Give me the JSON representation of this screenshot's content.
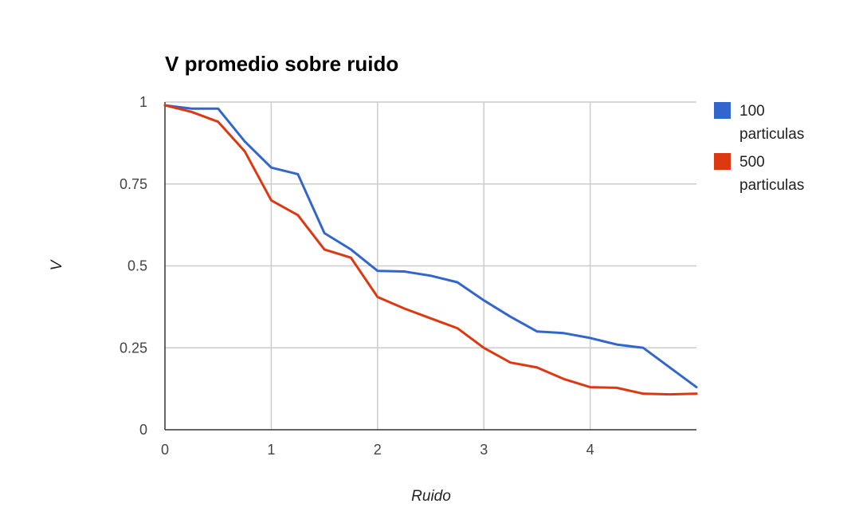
{
  "chart_data": {
    "type": "line",
    "title": "V promedio sobre ruido",
    "xlabel": "Ruido",
    "ylabel": "V",
    "xlim": [
      0,
      5
    ],
    "ylim": [
      0,
      1
    ],
    "x_ticks": [
      0,
      1,
      2,
      3,
      4
    ],
    "y_ticks": [
      0,
      0.25,
      0.5,
      0.75,
      1
    ],
    "x_tick_labels": [
      "0",
      "1",
      "2",
      "3",
      "4"
    ],
    "y_tick_labels": [
      "0",
      "0.25",
      "0.5",
      "0.75",
      "1"
    ],
    "grid": true,
    "legend_position": "right",
    "x": [
      0,
      0.25,
      0.5,
      0.75,
      1,
      1.25,
      1.5,
      1.75,
      2,
      2.25,
      2.5,
      2.75,
      3,
      3.25,
      3.5,
      3.75,
      4,
      4.25,
      4.5,
      4.75,
      5
    ],
    "series": [
      {
        "name_lines": [
          "100",
          "particulas"
        ],
        "color": "#3366cc",
        "values": [
          0.99,
          0.98,
          0.98,
          0.88,
          0.8,
          0.78,
          0.6,
          0.55,
          0.485,
          0.483,
          0.47,
          0.45,
          0.395,
          0.345,
          0.3,
          0.295,
          0.28,
          0.26,
          0.25,
          0.19,
          0.13
        ]
      },
      {
        "name_lines": [
          "500",
          "particulas"
        ],
        "color": "#dc3912",
        "values": [
          0.99,
          0.97,
          0.94,
          0.85,
          0.7,
          0.655,
          0.55,
          0.525,
          0.405,
          0.37,
          0.34,
          0.31,
          0.25,
          0.205,
          0.19,
          0.155,
          0.13,
          0.128,
          0.11,
          0.108,
          0.11
        ]
      }
    ]
  }
}
